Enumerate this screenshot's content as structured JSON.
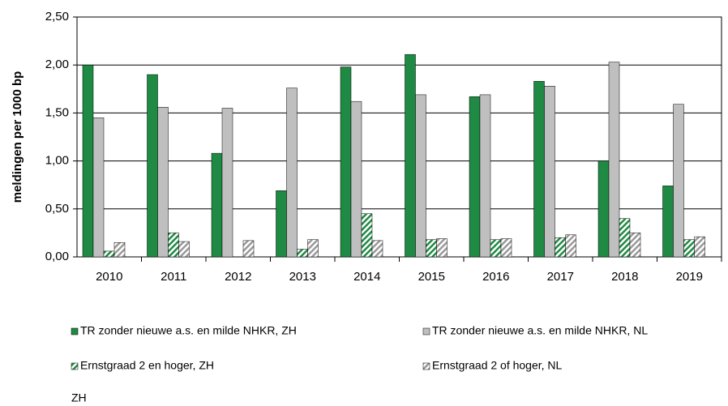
{
  "chart_data": {
    "type": "bar",
    "y_label": "meldingen  per 1000 bp",
    "categories": [
      "2010",
      "2011",
      "2012",
      "2013",
      "2014",
      "2015",
      "2016",
      "2017",
      "2018",
      "2019"
    ],
    "series": [
      {
        "name": "TR zonder nieuwe a.s. en milde NHKR, ZH",
        "color": "#1f8a43",
        "pattern": "solid",
        "values": [
          2.0,
          1.9,
          1.08,
          0.69,
          1.98,
          2.11,
          1.67,
          1.83,
          1.0,
          0.74
        ]
      },
      {
        "name": "TR zonder nieuwe a.s. en milde NHKR, NL",
        "color": "#bfbfbf",
        "pattern": "solid",
        "values": [
          1.45,
          1.56,
          1.55,
          1.76,
          1.62,
          1.69,
          1.69,
          1.78,
          2.03,
          1.59
        ]
      },
      {
        "name": "Ernstgraad 2 en hoger, ZH",
        "color": "#1f8a43",
        "pattern": "hatch",
        "values": [
          0.06,
          0.25,
          null,
          0.08,
          0.45,
          0.18,
          0.18,
          0.2,
          0.4,
          0.18
        ]
      },
      {
        "name": "Ernstgraad 2 of hoger, NL",
        "color": "#999999",
        "pattern": "hatch",
        "values": [
          0.15,
          0.16,
          0.17,
          0.18,
          0.17,
          0.19,
          0.19,
          0.23,
          0.25,
          0.21
        ]
      }
    ],
    "ylim": [
      0,
      2.5
    ],
    "yticks": [
      {
        "value": 0,
        "label": "0,00"
      },
      {
        "value": 0.5,
        "label": "0,50"
      },
      {
        "value": 1,
        "label": "1,00"
      },
      {
        "value": 1.5,
        "label": "1,50"
      },
      {
        "value": 2,
        "label": "2,00"
      },
      {
        "value": 2.5,
        "label": "2,50"
      }
    ],
    "grid": true,
    "legend": "bottom",
    "annotation": "ZH"
  }
}
